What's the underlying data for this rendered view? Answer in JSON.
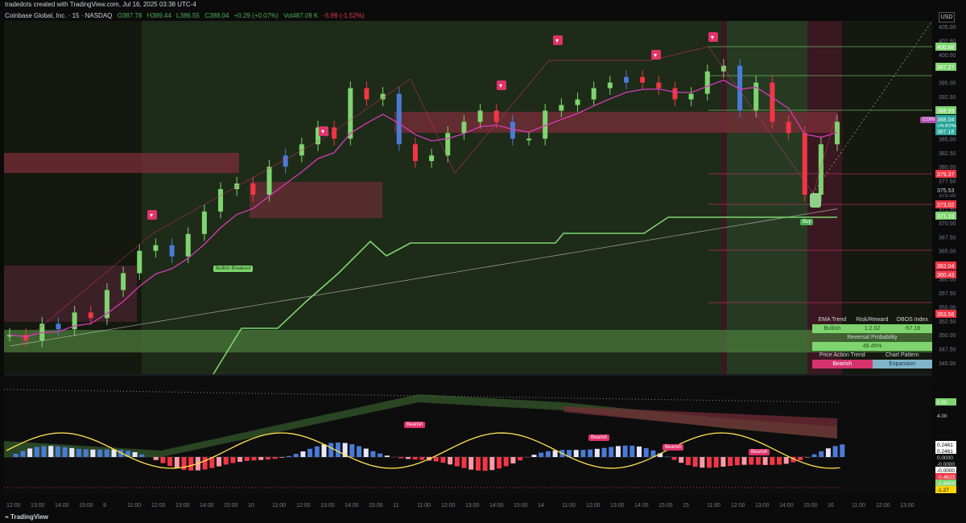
{
  "header": {
    "credit": "tradedots created with TradingView.com, Jul 16, 2025 03:38 UTC-4",
    "symbol": "Coinbase Global, Inc. · 15 · NASDAQ",
    "open": "O387.78",
    "high": "H389.44",
    "low": "L386.55",
    "close": "C388.04",
    "change": "+0.29 (+0.07%)",
    "vol": "Vol487.09 K",
    "vol_change": "-5.99 (-1.52%)",
    "currency": "USD"
  },
  "footer": {
    "brand": "TradingView"
  },
  "colors": {
    "bull": "#7ed56f",
    "bear": "#f23645",
    "blue": "#4a7bd6",
    "ema": "#d63bb8",
    "zone_red": "#7a2e38",
    "zone_green": "#4a7a3a"
  },
  "annotations": {
    "bullish_breakout": "Bullish Breakout",
    "buy": "Buy",
    "bearish": "Bearish",
    "coin_tag": "COIN"
  },
  "panel": {
    "h1": "EMA Trend",
    "h2": "Risk/Reward",
    "h3": "OBOS Index",
    "v1": "Bullish",
    "v2": "1:2.02",
    "v3": "-57.18",
    "rev_label": "Reversal Probability",
    "rev_value": "49.45%",
    "h4": "Price Action Trend",
    "h5": "Chart Pattern",
    "v4": "Bearish",
    "v5": "Expansion"
  },
  "chart_data": {
    "type": "line",
    "title": "Coinbase Global, Inc. · 15 · NASDAQ",
    "ylim": [
      343,
      406
    ],
    "x_ticks": [
      "12:00",
      "13:00",
      "14:00",
      "15:00",
      "9",
      "11:00",
      "12:00",
      "13:00",
      "14:00",
      "15:00",
      "10",
      "11:00",
      "12:00",
      "13:00",
      "14:00",
      "15:00",
      "11",
      "11:00",
      "12:00",
      "13:00",
      "14:00",
      "15:00",
      "14",
      "11:00",
      "12:00",
      "13:00",
      "14:00",
      "15:00",
      "15",
      "11:00",
      "12:00",
      "13:00",
      "14:00",
      "15:00",
      "16",
      "11:00",
      "12:00",
      "13:00"
    ],
    "y_ticks": [
      "405.00",
      "402.50",
      "400.00",
      "397.50",
      "395.00",
      "392.50",
      "390.00",
      "387.50",
      "385.00",
      "382.50",
      "380.00",
      "377.50",
      "375.00",
      "372.50",
      "370.00",
      "367.50",
      "365.00",
      "362.50",
      "360.00",
      "357.50",
      "355.00",
      "352.50",
      "350.00",
      "347.50",
      "345.00"
    ],
    "price_labels": [
      {
        "v": "400.88",
        "color": "#7ed56f"
      },
      {
        "v": "397.27",
        "color": "#7ed56f"
      },
      {
        "v": "388.99",
        "color": "#7ed56f"
      },
      {
        "v": "388.04",
        "color": "#26a69a"
      },
      {
        "v": "+9.82%",
        "color": "#26a69a"
      },
      {
        "v": "387.16",
        "color": "#26a69a"
      },
      {
        "v": "379.37",
        "color": "#f23645"
      },
      {
        "v": "375.53",
        "color": "#0b0b0c"
      },
      {
        "v": "373.02",
        "color": "#f23645"
      },
      {
        "v": "371.10",
        "color": "#7ed56f"
      },
      {
        "v": "362.04",
        "color": "#f23645"
      },
      {
        "v": "360.43",
        "color": "#f23645"
      },
      {
        "v": "353.56",
        "color": "#f23645"
      }
    ],
    "osc_labels": [
      {
        "v": "5.50",
        "color": "#7ed56f"
      },
      {
        "v": "4.00",
        "color": "#0b0b0c"
      },
      {
        "v": "0.2461",
        "color": "#ffffff"
      },
      {
        "v": "0.2461",
        "color": "#ffffff"
      },
      {
        "v": "0.0000",
        "color": "#0b0b0c"
      },
      {
        "v": "-0.0000",
        "color": "#0b0b0c"
      },
      {
        "v": "-0.0000",
        "color": "#ffffff"
      },
      {
        "v": "-0.4623",
        "color": "#f23645"
      },
      {
        "v": "-0.6959",
        "color": "#7ed56f"
      },
      {
        "v": "-1.27",
        "color": "#ffd600"
      }
    ],
    "series": [
      {
        "name": "Coinbase Global, Inc.",
        "values": [
          350,
          349,
          352,
          351,
          354,
          353,
          358,
          361,
          365,
          366,
          364,
          368,
          372,
          376,
          377,
          375,
          380,
          382,
          384,
          387,
          385,
          394,
          392,
          393,
          384,
          381,
          382,
          386,
          388,
          390,
          388,
          385,
          385,
          390,
          391,
          392,
          394,
          395,
          396,
          395,
          394,
          392,
          393,
          397,
          398,
          390,
          395,
          388,
          386,
          375,
          384,
          388
        ]
      }
    ]
  }
}
